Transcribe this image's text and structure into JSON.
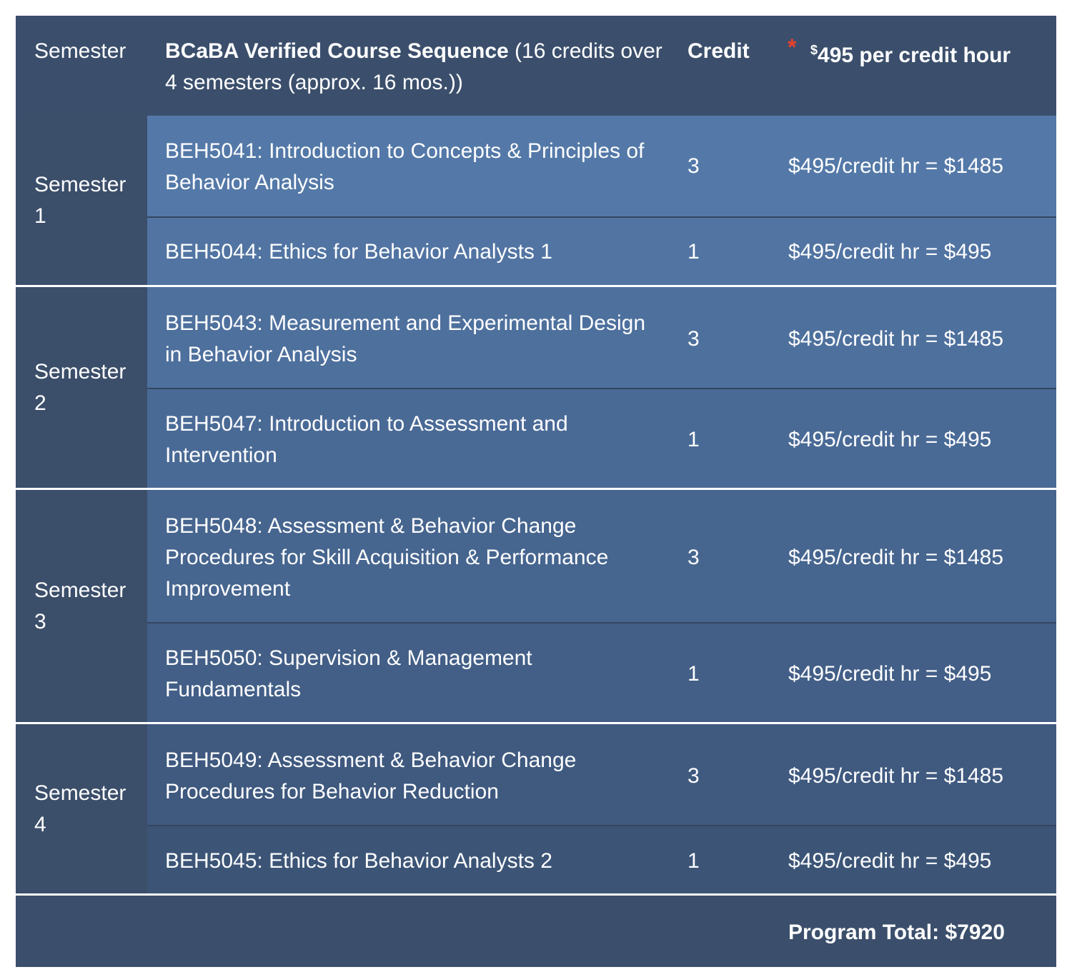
{
  "header": {
    "semester": "Semester",
    "sequence_bold": "BCaBA Verified Course Sequence",
    "sequence_rest": " (16 credits over 4 semesters (approx. 16 mos.))",
    "credit": "Credit",
    "rate_asterisk": "*",
    "rate_sup": "$",
    "rate_text": "495 per credit hour"
  },
  "semesters": [
    {
      "label": "Semester 1",
      "courses": [
        {
          "name": "BEH5041: Introduction to Concepts & Principles of Behavior Analysis",
          "credit": "3",
          "cost": "$495/credit hr = $1485"
        },
        {
          "name": "BEH5044: Ethics for Behavior Analysts 1",
          "credit": "1",
          "cost": "$495/credit hr = $495"
        }
      ]
    },
    {
      "label": "Semester 2",
      "courses": [
        {
          "name": "BEH5043: Measurement and Experimental Design in Behavior Analysis",
          "credit": "3",
          "cost": "$495/credit hr = $1485"
        },
        {
          "name": "BEH5047: Introduction to Assessment and Intervention",
          "credit": "1",
          "cost": "$495/credit hr = $495"
        }
      ]
    },
    {
      "label": "Semester 3",
      "courses": [
        {
          "name": "BEH5048: Assessment & Behavior Change Procedures for Skill Acquisition & Performance Improvement",
          "credit": "3",
          "cost": "$495/credit hr = $1485"
        },
        {
          "name": "BEH5050: Supervision & Management Fundamentals",
          "credit": "1",
          "cost": "$495/credit hr = $495"
        }
      ]
    },
    {
      "label": "Semester 4",
      "courses": [
        {
          "name": "BEH5049: Assessment & Behavior Change Procedures for Behavior Reduction",
          "credit": "3",
          "cost": "$495/credit hr = $1485"
        },
        {
          "name": "BEH5045: Ethics for Behavior Analysts 2",
          "credit": "1",
          "cost": "$495/credit hr = $495"
        }
      ]
    }
  ],
  "footer": {
    "total": "Program Total: $7920"
  },
  "colors": {
    "header": "#3b4f6c",
    "semester_cell": "#3b4e6a",
    "row_gradient_top": "#5479a8",
    "row_gradient_bottom": "#3b5170",
    "asterisk": "#e8412c",
    "divider": "#ffffff"
  }
}
